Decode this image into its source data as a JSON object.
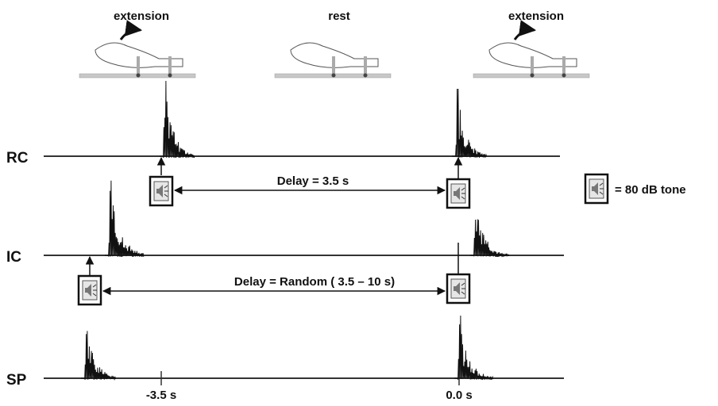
{
  "header": {
    "conditions": [
      "extension",
      "rest",
      "extension"
    ]
  },
  "traces": [
    {
      "label": "RC"
    },
    {
      "label": "IC"
    },
    {
      "label": "SP"
    }
  ],
  "delays": [
    "Delay = 3.5 s",
    "Delay = Random ( 3.5 – 10 s)"
  ],
  "legend": {
    "label": "= 80 dB tone"
  },
  "time_axis": {
    "ticks": [
      "-3.5 s",
      "0.0 s"
    ]
  }
}
